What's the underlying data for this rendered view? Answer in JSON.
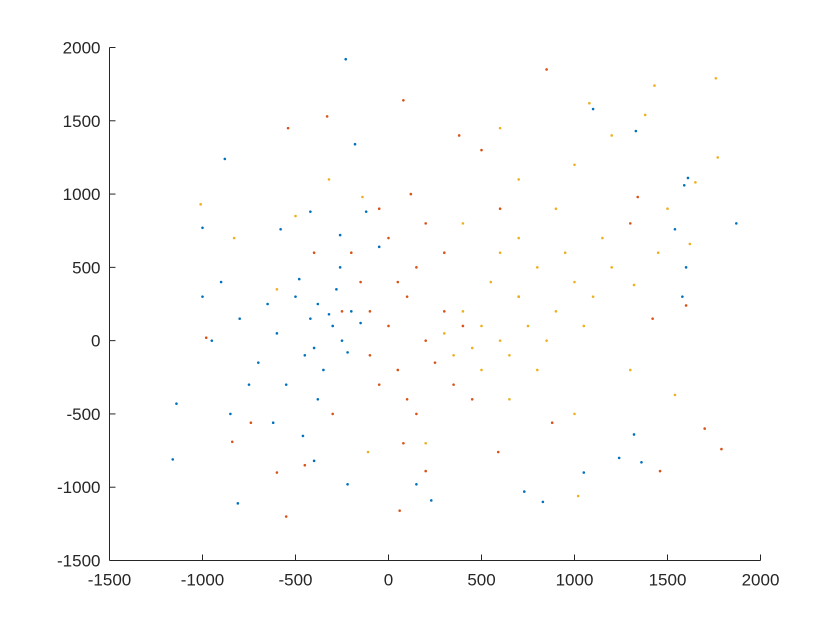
{
  "chart_data": {
    "type": "scatter",
    "title": "",
    "xlabel": "",
    "ylabel": "",
    "xlim": [
      -1500,
      2000
    ],
    "ylim": [
      -1500,
      2000
    ],
    "xticks": [
      -1500,
      -1000,
      -500,
      0,
      500,
      1000,
      1500,
      2000
    ],
    "yticks": [
      -1500,
      -1000,
      -500,
      0,
      500,
      1000,
      1500,
      2000
    ],
    "xtick_labels": [
      "-1500",
      "-1000",
      "-500",
      "0",
      "500",
      "1000",
      "1500",
      "2000"
    ],
    "ytick_labels": [
      "-1500",
      "-1000",
      "-500",
      "0",
      "500",
      "1000",
      "1500",
      "2000"
    ],
    "grid": false,
    "legend": "none",
    "series": [
      {
        "color": "#0072BD",
        "points": [
          [
            -420,
            150
          ],
          [
            -380,
            250
          ],
          [
            -300,
            100
          ],
          [
            -250,
            0
          ],
          [
            -450,
            -100
          ],
          [
            -500,
            300
          ],
          [
            -350,
            -200
          ],
          [
            -200,
            200
          ],
          [
            -600,
            50
          ],
          [
            -550,
            -300
          ],
          [
            -280,
            350
          ],
          [
            -400,
            -50
          ],
          [
            -320,
            180
          ],
          [
            -220,
            -80
          ],
          [
            -480,
            420
          ],
          [
            -150,
            120
          ],
          [
            -650,
            250
          ],
          [
            -700,
            -150
          ],
          [
            -380,
            -400
          ],
          [
            -260,
            500
          ],
          [
            -900,
            400
          ],
          [
            -1000,
            300
          ],
          [
            -800,
            150
          ],
          [
            -750,
            -300
          ],
          [
            -850,
            -500
          ],
          [
            -950,
            0
          ],
          [
            -1140,
            -430
          ],
          [
            -1160,
            -810
          ],
          [
            -810,
            -1110
          ],
          [
            -880,
            1240
          ],
          [
            -1000,
            770
          ],
          [
            -230,
            1920
          ],
          [
            -180,
            1340
          ],
          [
            1870,
            800
          ],
          [
            1610,
            1110
          ],
          [
            1590,
            1060
          ],
          [
            1100,
            1580
          ],
          [
            1330,
            1430
          ],
          [
            1580,
            300
          ],
          [
            1600,
            500
          ],
          [
            1540,
            760
          ],
          [
            1240,
            -800
          ],
          [
            1360,
            -830
          ],
          [
            1320,
            -640
          ],
          [
            1050,
            -900
          ],
          [
            730,
            -1030
          ],
          [
            830,
            -1100
          ],
          [
            230,
            -1090
          ],
          [
            150,
            -980
          ],
          [
            -220,
            -980
          ],
          [
            -400,
            -820
          ],
          [
            -260,
            720
          ],
          [
            -120,
            880
          ],
          [
            -580,
            760
          ],
          [
            -420,
            880
          ],
          [
            -50,
            640
          ],
          [
            -460,
            -650
          ],
          [
            -620,
            -560
          ]
        ]
      },
      {
        "color": "#D95319",
        "points": [
          [
            0,
            100
          ],
          [
            100,
            300
          ],
          [
            -100,
            200
          ],
          [
            200,
            0
          ],
          [
            50,
            -200
          ],
          [
            150,
            500
          ],
          [
            -50,
            -300
          ],
          [
            300,
            200
          ],
          [
            250,
            -150
          ],
          [
            -150,
            400
          ],
          [
            100,
            -400
          ],
          [
            0,
            700
          ],
          [
            200,
            800
          ],
          [
            -200,
            600
          ],
          [
            350,
            -300
          ],
          [
            50,
            400
          ],
          [
            150,
            -500
          ],
          [
            -100,
            -100
          ],
          [
            400,
            100
          ],
          [
            -250,
            200
          ],
          [
            300,
            600
          ],
          [
            -50,
            900
          ],
          [
            120,
            1000
          ],
          [
            80,
            -700
          ],
          [
            -300,
            -500
          ],
          [
            450,
            -400
          ],
          [
            80,
            1640
          ],
          [
            -330,
            1530
          ],
          [
            -540,
            1450
          ],
          [
            -550,
            -1200
          ],
          [
            60,
            -1160
          ],
          [
            850,
            1850
          ],
          [
            1700,
            -600
          ],
          [
            1790,
            -740
          ],
          [
            1460,
            -890
          ],
          [
            1300,
            800
          ],
          [
            1600,
            240
          ],
          [
            -600,
            -900
          ],
          [
            -740,
            -560
          ],
          [
            -840,
            -690
          ],
          [
            -980,
            20
          ],
          [
            200,
            -890
          ],
          [
            590,
            -760
          ],
          [
            880,
            -560
          ],
          [
            600,
            900
          ],
          [
            700,
            300
          ],
          [
            -400,
            600
          ],
          [
            500,
            1300
          ],
          [
            380,
            1400
          ],
          [
            -450,
            -850
          ],
          [
            1340,
            980
          ],
          [
            1420,
            150
          ]
        ]
      },
      {
        "color": "#EDB120",
        "points": [
          [
            500,
            100
          ],
          [
            700,
            300
          ],
          [
            600,
            0
          ],
          [
            800,
            500
          ],
          [
            400,
            200
          ],
          [
            900,
            200
          ],
          [
            650,
            -100
          ],
          [
            1000,
            400
          ],
          [
            550,
            400
          ],
          [
            750,
            100
          ],
          [
            450,
            -50
          ],
          [
            850,
            0
          ],
          [
            1100,
            300
          ],
          [
            600,
            600
          ],
          [
            300,
            50
          ],
          [
            700,
            700
          ],
          [
            950,
            600
          ],
          [
            500,
            -200
          ],
          [
            800,
            -200
          ],
          [
            1050,
            100
          ],
          [
            1200,
            500
          ],
          [
            400,
            800
          ],
          [
            900,
            900
          ],
          [
            1150,
            700
          ],
          [
            650,
            -400
          ],
          [
            350,
            -100
          ],
          [
            1430,
            1740
          ],
          [
            1760,
            1790
          ],
          [
            1770,
            1250
          ],
          [
            1620,
            660
          ],
          [
            1320,
            380
          ],
          [
            1540,
            -370
          ],
          [
            1020,
            -1060
          ],
          [
            1080,
            1620
          ],
          [
            1380,
            1540
          ],
          [
            1200,
            1400
          ],
          [
            1000,
            1200
          ],
          [
            700,
            1100
          ],
          [
            -1010,
            930
          ],
          [
            -830,
            700
          ],
          [
            -600,
            350
          ],
          [
            -500,
            850
          ],
          [
            -320,
            1100
          ],
          [
            -140,
            980
          ],
          [
            -110,
            -760
          ],
          [
            200,
            -700
          ],
          [
            1000,
            -500
          ],
          [
            1300,
            -200
          ],
          [
            1450,
            600
          ],
          [
            1650,
            1080
          ],
          [
            1500,
            900
          ],
          [
            600,
            1450
          ]
        ]
      }
    ]
  }
}
